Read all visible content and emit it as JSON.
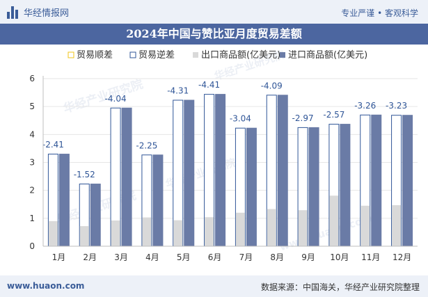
{
  "header": {
    "site_name": "华经情报网",
    "slogan": "专业严谨 • 客观科学"
  },
  "footer": {
    "website": "www.huaon.com",
    "source": "数据来源：中国海关，华经产业研究院整理"
  },
  "watermarks": [
    "华经产业研究院",
    "华经产业研究院",
    "华经产业研究院",
    "华经产业研究院",
    "www.huaon.com"
  ],
  "chart_data": {
    "type": "bar",
    "title": "2024年中国与赞比亚月度贸易差额",
    "categories": [
      "1月",
      "2月",
      "3月",
      "4月",
      "5月",
      "6月",
      "7月",
      "8月",
      "9月",
      "10月",
      "11月",
      "12月"
    ],
    "series": [
      {
        "name": "贸易顺差",
        "values": [
          null,
          null,
          null,
          null,
          null,
          null,
          null,
          null,
          null,
          null,
          null,
          null
        ]
      },
      {
        "name": "贸易逆差",
        "values": [
          -2.41,
          -1.52,
          -4.04,
          -2.25,
          -4.31,
          -4.41,
          -3.04,
          -4.09,
          -2.97,
          -2.57,
          -3.26,
          -3.23
        ]
      },
      {
        "name": "出口商品额(亿美元)",
        "values": [
          0.9,
          0.72,
          0.92,
          1.03,
          0.93,
          1.04,
          1.2,
          1.33,
          1.29,
          1.81,
          1.45,
          1.47
        ]
      },
      {
        "name": "进口商品额(亿美元)",
        "values": [
          3.31,
          2.24,
          4.96,
          3.28,
          5.24,
          5.45,
          4.24,
          5.42,
          4.26,
          4.38,
          4.71,
          4.7
        ]
      }
    ],
    "yticks": [
      "0",
      "1",
      "2",
      "3",
      "4",
      "5",
      "6"
    ],
    "ylim": [
      0,
      6
    ],
    "colors": {
      "surplus_outline": "#f0c419",
      "deficit_outline": "#2f5597",
      "export": "#d9d9d9",
      "import": "#6a7ba6",
      "label": "#2f5597"
    }
  }
}
